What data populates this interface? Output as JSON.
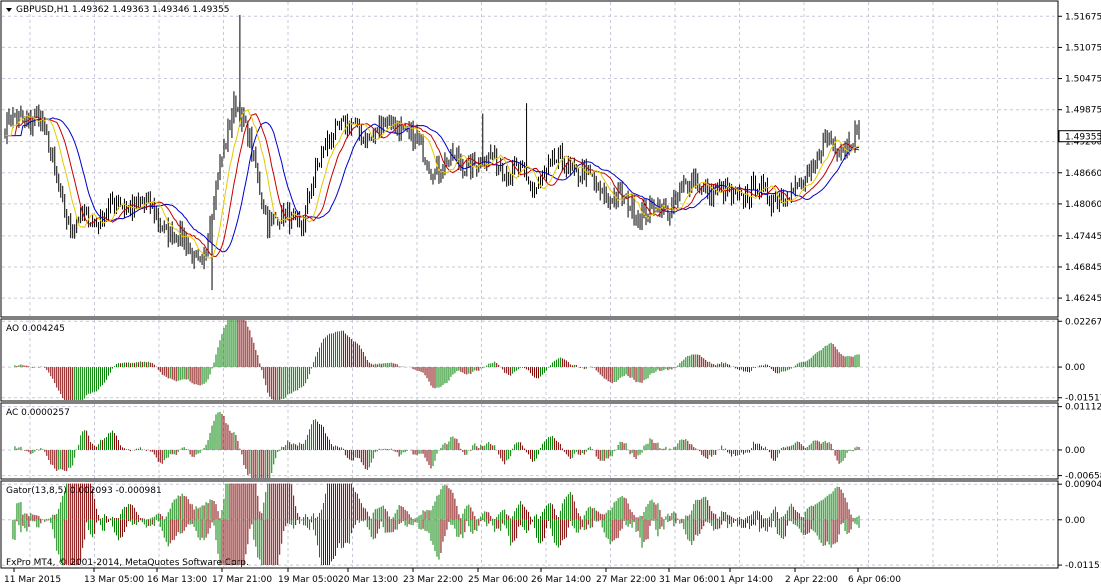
{
  "window": {
    "symbol_title": "GBPUSD,H1  1.49362 1.49363 1.49346 1.49355",
    "copyright": "FxPro MT4, © 2001-2014, MetaQuotes Software Corp.",
    "last_price_label": "1.49355"
  },
  "colors": {
    "background": "#ffffff",
    "frame": "#000000",
    "grid": "#c8c8d8",
    "price_tag_bg": "#ffffff",
    "alligator_jaw": "#0000c8",
    "alligator_teeth": "#c80000",
    "alligator_lips": "#e6c800",
    "bar_up": "#008000",
    "bar_down": "#800000"
  },
  "panes": {
    "price": {
      "y_labels": [
        "1.51675",
        "1.51075",
        "1.50475",
        "1.49875",
        "1.49260",
        "1.48660",
        "1.48060",
        "1.47445",
        "1.46845",
        "1.46245"
      ],
      "y_values": [
        1.51675,
        1.51075,
        1.50475,
        1.49875,
        1.4926,
        1.4866,
        1.4806,
        1.47445,
        1.46845,
        1.46245
      ],
      "y_range": [
        1.459,
        1.5195
      ]
    },
    "ao": {
      "title": "AO 0.004245",
      "y_labels": [
        "0.022674",
        "0.00",
        "-0.015174"
      ],
      "y_values": [
        0.022674,
        0.0,
        -0.015174
      ],
      "y_range": [
        -0.0163,
        0.0233
      ]
    },
    "ac": {
      "title": "AC 0.0000257",
      "y_labels": [
        "0.011124",
        "0.00",
        "-0.006581"
      ],
      "y_values": [
        0.011124,
        0.0,
        -0.006581
      ],
      "y_range": [
        -0.0072,
        0.0118
      ]
    },
    "gator": {
      "title": "Gator(13,8,5) 0.002093 -0.000981",
      "y_labels": [
        "0.009041",
        "0.00",
        "-0.011511"
      ],
      "y_values": [
        0.009041,
        0.0,
        -0.011511
      ],
      "y_range": [
        -0.012,
        0.0096
      ]
    }
  },
  "x_axis": {
    "labels": [
      "11 Mar 2015",
      "13 Mar 05:00",
      "16 Mar 13:00",
      "17 Mar 21:00",
      "19 Mar 05:00",
      "20 Mar 13:00",
      "23 Mar 22:00",
      "25 Mar 06:00",
      "26 Mar 14:00",
      "27 Mar 22:00",
      "31 Mar 06:00",
      "1 Apr 14:00",
      "2 Apr 22:00",
      "6 Apr 06:00"
    ]
  },
  "chart_data": {
    "type": "ohlc",
    "title": "GBPUSD,H1",
    "ohlc_last": {
      "open": 1.49362,
      "high": 1.49363,
      "low": 1.49346,
      "close": 1.49355
    },
    "x_tick_labels": [
      "11 Mar 2015",
      "13 Mar 05:00",
      "16 Mar 13:00",
      "17 Mar 21:00",
      "19 Mar 05:00",
      "20 Mar 13:00",
      "23 Mar 22:00",
      "25 Mar 06:00",
      "26 Mar 14:00",
      "27 Mar 22:00",
      "31 Mar 06:00",
      "1 Apr 14:00",
      "2 Apr 22:00",
      "6 Apr 06:00"
    ],
    "close_profile": [
      [
        "11 Mar 2015",
        1.4955
      ],
      [
        "12 Mar 12:00",
        1.498
      ],
      [
        "13 Mar 05:00",
        1.476
      ],
      [
        "16 Mar 00:00",
        1.479
      ],
      [
        "16 Mar 13:00",
        1.481
      ],
      [
        "17 Mar 08:00",
        1.476
      ],
      [
        "17 Mar 21:00",
        1.469
      ],
      [
        "18 Mar 18:00",
        1.502
      ],
      [
        "19 Mar 05:00",
        1.478
      ],
      [
        "19 Mar 20:00",
        1.477
      ],
      [
        "20 Mar 13:00",
        1.496
      ],
      [
        "23 Mar 08:00",
        1.494
      ],
      [
        "23 Mar 22:00",
        1.4965
      ],
      [
        "24 Mar 14:00",
        1.488
      ],
      [
        "25 Mar 06:00",
        1.4885
      ],
      [
        "26 Mar 00:00",
        1.489
      ],
      [
        "26 Mar 14:00",
        1.484
      ],
      [
        "27 Mar 06:00",
        1.489
      ],
      [
        "27 Mar 22:00",
        1.484
      ],
      [
        "30 Mar 14:00",
        1.48
      ],
      [
        "31 Mar 06:00",
        1.479
      ],
      [
        "31 Mar 22:00",
        1.485
      ],
      [
        "1 Apr 14:00",
        1.482
      ],
      [
        "2 Apr 06:00",
        1.483
      ],
      [
        "2 Apr 22:00",
        1.482
      ],
      [
        "3 Apr 14:00",
        1.492
      ],
      [
        "6 Apr 06:00",
        1.4935
      ]
    ]
  }
}
